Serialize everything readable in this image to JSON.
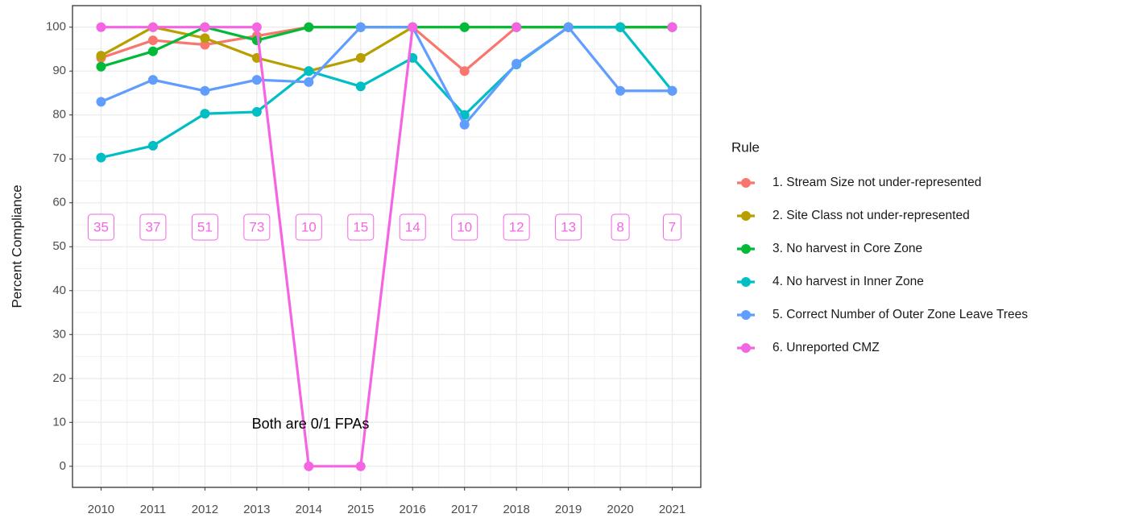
{
  "chart_data": {
    "type": "line",
    "y_label": "Percent Compliance",
    "legend_title": "Rule",
    "x": [
      2010,
      2011,
      2012,
      2013,
      2014,
      2015,
      2016,
      2017,
      2018,
      2019,
      2020,
      2021
    ],
    "xlim": [
      2009.45,
      2021.55
    ],
    "xticks": [
      2010,
      2011,
      2012,
      2013,
      2014,
      2015,
      2016,
      2017,
      2018,
      2019,
      2020,
      2021
    ],
    "ylim": [
      -4.8,
      104.9
    ],
    "yticks": [
      0,
      10,
      20,
      30,
      40,
      50,
      60,
      70,
      80,
      90,
      100
    ],
    "grid": true,
    "legend_position": "right",
    "series": [
      {
        "name": "1. Stream Size not under-represented",
        "color": "#F8766D",
        "values": [
          93,
          97,
          96,
          98,
          100,
          100,
          100,
          90,
          100,
          100,
          100,
          100
        ]
      },
      {
        "name": "2. Site Class not under-represented",
        "color": "#B79F00",
        "values": [
          93.5,
          100,
          97.5,
          93,
          90,
          93,
          100,
          100,
          100,
          100,
          100,
          100
        ]
      },
      {
        "name": "3. No harvest in Core Zone",
        "color": "#00BA38",
        "values": [
          91,
          94.5,
          100,
          97,
          100,
          100,
          100,
          100,
          100,
          100,
          100,
          100
        ]
      },
      {
        "name": "4. No harvest in Inner Zone",
        "color": "#00BFC4",
        "values": [
          70.3,
          73,
          80.3,
          80.7,
          90,
          86.5,
          93,
          80,
          91.5,
          100,
          100,
          85.5
        ]
      },
      {
        "name": "5. Correct Number of Outer Zone Leave Trees",
        "color": "#619CFF",
        "values": [
          83,
          88,
          85.5,
          88,
          87.5,
          100,
          100,
          77.8,
          91.7,
          100,
          85.5,
          85.5
        ]
      },
      {
        "name": "6. Unreported CMZ",
        "color": "#F564E3",
        "values": [
          100,
          100,
          100,
          100,
          0,
          0,
          100,
          null,
          100,
          null,
          null,
          100
        ]
      }
    ],
    "count_labels": [
      35,
      37,
      51,
      73,
      10,
      15,
      14,
      10,
      12,
      13,
      8,
      7
    ],
    "count_label_color": "#F564E3",
    "annotation": "Both are 0/1 FPAs"
  }
}
